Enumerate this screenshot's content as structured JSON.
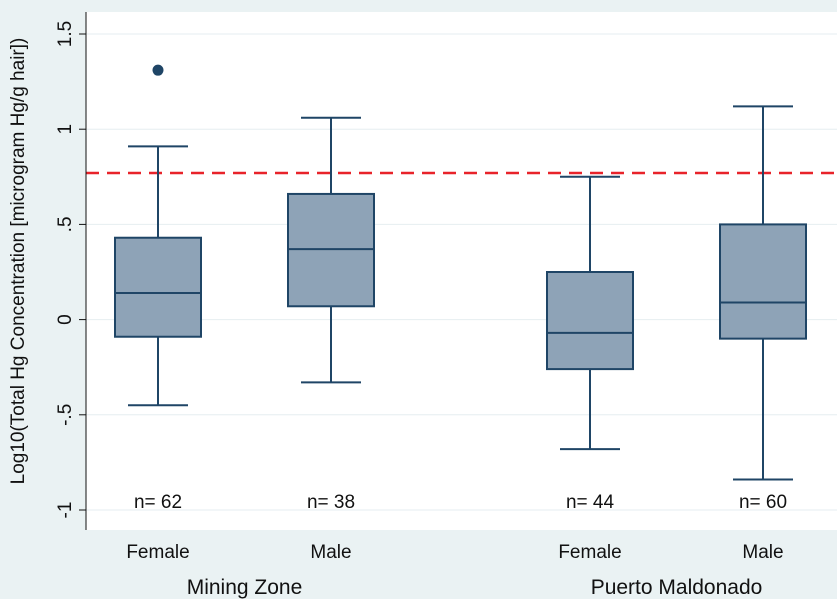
{
  "chart_data": {
    "type": "box",
    "ylabel": "Log10(Total Hg Concentration [microgram Hg/g hair])",
    "ylim": [
      -1.1,
      1.6
    ],
    "yticks": [
      {
        "value": 1.5,
        "label": "1.5"
      },
      {
        "value": 1,
        "label": "1"
      },
      {
        "value": 0.5,
        "label": ".5"
      },
      {
        "value": 0,
        "label": "0"
      },
      {
        "value": -0.5,
        "label": "-.5"
      },
      {
        "value": -1,
        "label": "-1"
      }
    ],
    "grid": true,
    "reference_line": {
      "value": 0.77,
      "style": "dashed",
      "color": "#e8232a"
    },
    "groups": [
      {
        "label": "Mining Zone",
        "categories": [
          0,
          1
        ]
      },
      {
        "label": "Puerto Maldonado",
        "categories": [
          2,
          3
        ]
      }
    ],
    "boxes": [
      {
        "label": "Female",
        "n_label": "n= 62",
        "whisker_low": -0.45,
        "q1": -0.09,
        "median": 0.14,
        "q3": 0.43,
        "whisker_high": 0.91,
        "outliers": [
          1.31
        ]
      },
      {
        "label": "Male",
        "n_label": "n= 38",
        "whisker_low": -0.33,
        "q1": 0.07,
        "median": 0.37,
        "q3": 0.66,
        "whisker_high": 1.06,
        "outliers": []
      },
      {
        "label": "Female",
        "n_label": "n= 44",
        "whisker_low": -0.68,
        "q1": -0.26,
        "median": -0.07,
        "q3": 0.25,
        "whisker_high": 0.75,
        "outliers": []
      },
      {
        "label": "Male",
        "n_label": "n= 60",
        "whisker_low": -0.84,
        "q1": -0.1,
        "median": 0.09,
        "q3": 0.5,
        "whisker_high": 1.12,
        "outliers": []
      }
    ],
    "colors": {
      "box_fill": "#8ea3b7",
      "box_stroke": "#1f4566",
      "outlier": "#1f4566",
      "grid": "#e6eef0",
      "plot_bg": "#ffffff",
      "outer_bg": "#eaf2f3"
    }
  }
}
